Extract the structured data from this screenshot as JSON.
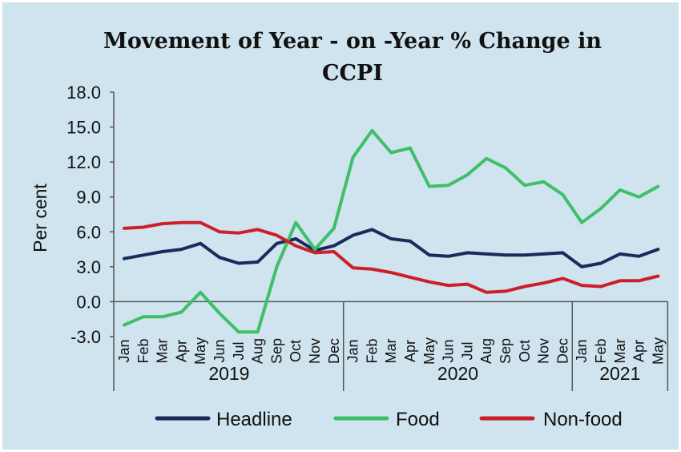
{
  "chart_data": {
    "type": "line",
    "title_line1": "Movement of Year - on -Year % Change in",
    "title_line2": "CCPI",
    "ylabel": "Per cent",
    "ylim": [
      -3.0,
      18.0
    ],
    "yticks": [
      "18.0",
      "15.0",
      "12.0",
      "9.0",
      "6.0",
      "3.0",
      "0.0",
      "-3.0"
    ],
    "ytick_values": [
      18,
      15,
      12,
      9,
      6,
      3,
      0,
      -3
    ],
    "categories": [
      "Jan",
      "Feb",
      "Mar",
      "Apr",
      "May",
      "Jun",
      "Jul",
      "Aug",
      "Sep",
      "Oct",
      "Nov",
      "Dec",
      "Jan",
      "Feb",
      "Mar",
      "Apr",
      "May",
      "Jun",
      "Jul",
      "Aug",
      "Sep",
      "Oct",
      "Nov",
      "Dec",
      "Jan",
      "Feb",
      "Mar",
      "Apr",
      "May"
    ],
    "years": [
      {
        "label": "2019",
        "count": 12
      },
      {
        "label": "2020",
        "count": 12
      },
      {
        "label": "2021",
        "count": 5
      }
    ],
    "series": [
      {
        "name": "Headline",
        "color": "#1b2a5c",
        "values": [
          3.7,
          4.0,
          4.3,
          4.5,
          5.0,
          3.8,
          3.3,
          3.4,
          5.0,
          5.4,
          4.4,
          4.8,
          5.7,
          6.2,
          5.4,
          5.2,
          4.0,
          3.9,
          4.2,
          4.1,
          4.0,
          4.0,
          4.1,
          4.2,
          3.0,
          3.3,
          4.1,
          3.9,
          4.5
        ]
      },
      {
        "name": "Food",
        "color": "#3fbf68",
        "values": [
          -2.0,
          -1.3,
          -1.3,
          -0.9,
          0.8,
          -1.0,
          -2.6,
          -2.6,
          3.0,
          6.8,
          4.5,
          6.3,
          12.4,
          14.7,
          12.8,
          13.2,
          9.9,
          10.0,
          10.9,
          12.3,
          11.5,
          10.0,
          10.3,
          9.2,
          6.8,
          8.0,
          9.6,
          9.0,
          9.9
        ]
      },
      {
        "name": "Non-food",
        "color": "#cc1f2b",
        "values": [
          6.3,
          6.4,
          6.7,
          6.8,
          6.8,
          6.0,
          5.9,
          6.2,
          5.7,
          4.8,
          4.2,
          4.3,
          2.9,
          2.8,
          2.5,
          2.1,
          1.7,
          1.4,
          1.5,
          0.8,
          0.9,
          1.3,
          1.6,
          2.0,
          1.4,
          1.3,
          1.8,
          1.8,
          2.2
        ]
      }
    ],
    "legend_position": "bottom",
    "grid": false
  }
}
